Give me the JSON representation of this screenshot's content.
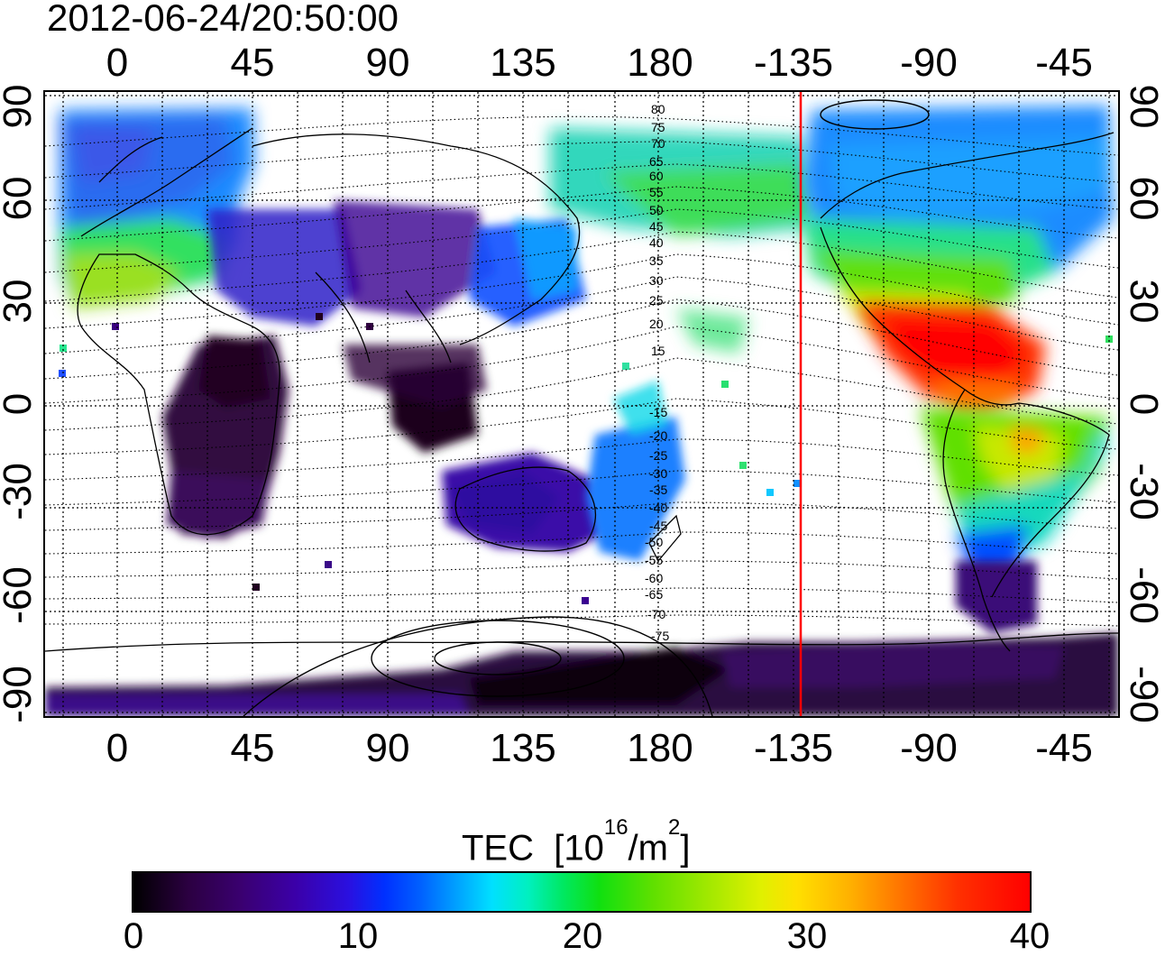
{
  "title": "2012-06-24/20:50:00",
  "lon_ticks": [
    "0",
    "45",
    "90",
    "135",
    "180",
    "-135",
    "-90",
    "-45"
  ],
  "lat_ticks": [
    "90",
    "60",
    "30",
    "0",
    "-30",
    "-60",
    "-90"
  ],
  "contour_labels": [
    "80",
    "75",
    "70",
    "65",
    "60",
    "55",
    "50",
    "45",
    "40",
    "35",
    "30",
    "25",
    "20",
    "15",
    "-15",
    "-20",
    "-25",
    "-30",
    "-35",
    "-40",
    "-45",
    "-50",
    "-55",
    "-60",
    "-65",
    "-70",
    "-75"
  ],
  "colorbar": {
    "label": "TEC",
    "unit_base": "[10",
    "unit_exp": "16",
    "unit_mid": "/m",
    "unit_exp2": "2",
    "unit_end": "]",
    "ticks": [
      "0",
      "10",
      "20",
      "30",
      "40"
    ],
    "colors": [
      "#000000",
      "#3a0070",
      "#0030ff",
      "#00e0ff",
      "#10e010",
      "#e0f000",
      "#ff7000",
      "#ff0000"
    ]
  },
  "marker_line_lon": "-135",
  "marker_color": "#ff0000"
}
